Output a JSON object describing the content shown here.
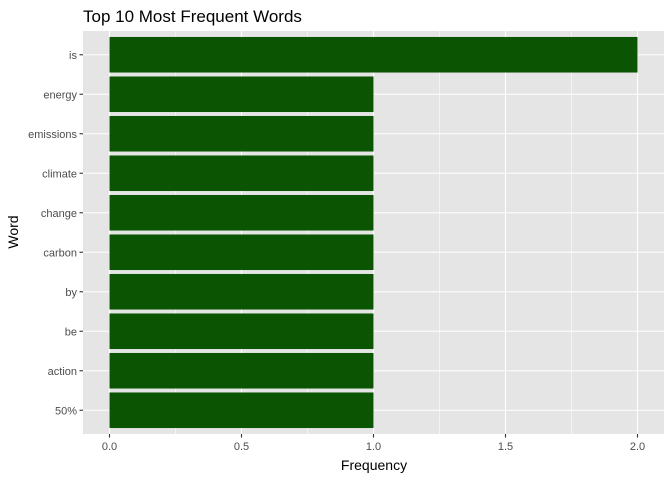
{
  "chart_data": {
    "type": "bar",
    "orientation": "horizontal",
    "title": "Top 10 Most Frequent Words",
    "xlabel": "Frequency",
    "ylabel": "Word",
    "categories": [
      "is",
      "energy",
      "emissions",
      "climate",
      "change",
      "carbon",
      "by",
      "be",
      "action",
      "50%"
    ],
    "values": [
      2,
      1,
      1,
      1,
      1,
      1,
      1,
      1,
      1,
      1
    ],
    "xlim": [
      0,
      2
    ],
    "xticks": [
      "0.0",
      "0.5",
      "1.0",
      "1.5",
      "2.0"
    ],
    "grid": true,
    "legend": "none",
    "colors": {
      "bar": "#0b5502",
      "panel_background": "#e5e5e5",
      "grid": "#ffffff",
      "tick_text": "#4d4d4d"
    }
  }
}
